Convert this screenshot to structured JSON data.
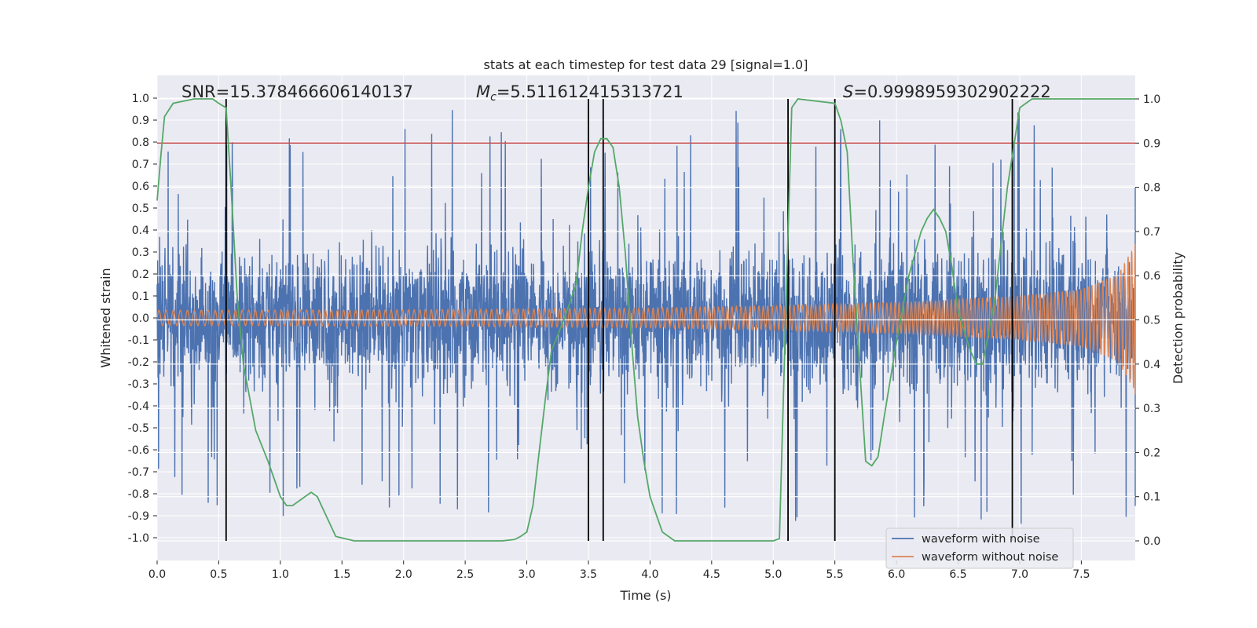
{
  "chart_data": {
    "type": "line",
    "title": "stats at each timestep for test data 29 [signal=1.0]",
    "xlabel": "Time (s)",
    "ylabel": "Whitened strain",
    "ylabel_right": "Detection probability",
    "xlim": [
      0.0,
      8.0
    ],
    "ylim": [
      -1.05,
      1.05
    ],
    "ylim_right": [
      -0.05,
      1.05
    ],
    "xticks": [
      "0.0",
      "0.5",
      "1.0",
      "1.5",
      "2.0",
      "2.5",
      "3.0",
      "3.5",
      "4.0",
      "4.5",
      "5.0",
      "5.5",
      "6.0",
      "6.5",
      "7.0",
      "7.5"
    ],
    "yticks": [
      "1.0",
      "0.9",
      "0.8",
      "0.7",
      "0.6",
      "0.5",
      "0.4",
      "0.3",
      "0.2",
      "0.1",
      "0.0",
      "-0.1",
      "-0.2",
      "-0.3",
      "-0.4",
      "-0.5",
      "-0.6",
      "-0.7",
      "-0.8",
      "-0.9",
      "-1.0"
    ],
    "yticks_right": [
      "1.0",
      "0.9",
      "0.8",
      "0.7",
      "0.6",
      "0.5",
      "0.4",
      "0.3",
      "0.2",
      "0.1",
      "0.0"
    ],
    "grid": true,
    "legend_position": "lower-right",
    "annotations": {
      "snr": "SNR=15.378466606140137",
      "mc_symbol": "M",
      "mc_sub": "c",
      "mc_value": "=5.511612415313721",
      "s_symbol": "S",
      "s_value": "=0.9998959302902222"
    },
    "threshold": {
      "value": 0.9,
      "axis": "right",
      "color": "#c44e52"
    },
    "vertical_lines": [
      0.56,
      3.5,
      3.62,
      5.12,
      5.5,
      6.94
    ],
    "series": [
      {
        "name": "waveform with noise",
        "color": "#4c72b0",
        "axis": "left",
        "noise_amplitude": 0.36,
        "spike_amplitude": 0.95
      },
      {
        "name": "waveform without noise",
        "color": "#dd8452",
        "axis": "left",
        "envelope": [
          [
            0.0,
            0.035
          ],
          [
            2.0,
            0.037
          ],
          [
            4.0,
            0.045
          ],
          [
            5.0,
            0.055
          ],
          [
            6.0,
            0.07
          ],
          [
            7.0,
            0.1
          ],
          [
            7.5,
            0.13
          ],
          [
            7.8,
            0.2
          ],
          [
            7.95,
            0.35
          ],
          [
            8.0,
            0.3
          ]
        ]
      },
      {
        "name": "detection probability",
        "color": "#55a868",
        "axis": "right",
        "x": [
          0.0,
          0.03,
          0.06,
          0.13,
          0.3,
          0.45,
          0.5,
          0.56,
          0.6,
          0.65,
          0.7,
          0.8,
          0.9,
          1.0,
          1.05,
          1.1,
          1.15,
          1.2,
          1.25,
          1.3,
          1.35,
          1.4,
          1.45,
          1.6,
          2.0,
          2.5,
          2.8,
          2.9,
          2.95,
          3.0,
          3.05,
          3.1,
          3.15,
          3.2,
          3.3,
          3.4,
          3.45,
          3.5,
          3.55,
          3.6,
          3.65,
          3.7,
          3.75,
          3.8,
          3.85,
          3.9,
          3.95,
          4.0,
          4.05,
          4.1,
          4.2,
          4.5,
          4.9,
          5.0,
          5.05,
          5.1,
          5.15,
          5.2,
          5.5,
          5.55,
          5.6,
          5.65,
          5.7,
          5.75,
          5.8,
          5.85,
          5.9,
          6.0,
          6.1,
          6.2,
          6.25,
          6.3,
          6.35,
          6.4,
          6.45,
          6.5,
          6.6,
          6.65,
          6.7,
          6.8,
          6.9,
          7.0,
          7.1,
          7.5,
          8.0
        ],
        "y": [
          0.77,
          0.87,
          0.96,
          0.99,
          1.0,
          1.0,
          0.99,
          0.98,
          0.8,
          0.55,
          0.4,
          0.25,
          0.18,
          0.1,
          0.08,
          0.08,
          0.09,
          0.1,
          0.11,
          0.1,
          0.07,
          0.04,
          0.01,
          0.0,
          0.0,
          0.0,
          0.0,
          0.003,
          0.01,
          0.02,
          0.08,
          0.2,
          0.32,
          0.43,
          0.5,
          0.58,
          0.7,
          0.8,
          0.88,
          0.91,
          0.91,
          0.89,
          0.8,
          0.65,
          0.45,
          0.28,
          0.18,
          0.1,
          0.06,
          0.02,
          0.0,
          0.0,
          0.0,
          0.0,
          0.005,
          0.5,
          0.98,
          1.0,
          0.99,
          0.95,
          0.88,
          0.62,
          0.4,
          0.18,
          0.17,
          0.19,
          0.28,
          0.45,
          0.6,
          0.7,
          0.73,
          0.75,
          0.73,
          0.7,
          0.62,
          0.52,
          0.43,
          0.4,
          0.4,
          0.55,
          0.8,
          0.98,
          1.0,
          1.0,
          1.0
        ]
      }
    ]
  }
}
